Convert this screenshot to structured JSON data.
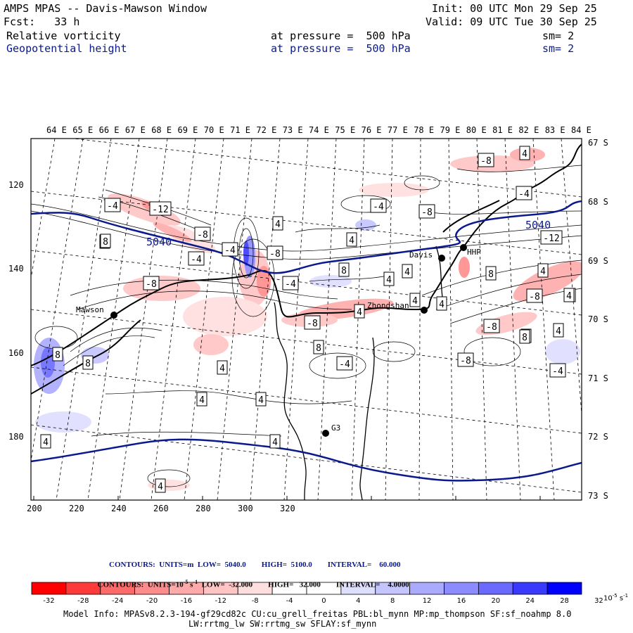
{
  "header": {
    "title": "AMPS MPAS -- Davis-Mawson Window",
    "init": "Init: 00 UTC Mon 29 Sep 25",
    "fcst": "Fcst:   33 h",
    "valid": "Valid: 09 UTC Tue 30 Sep 25",
    "field1_name": "Relative vorticity",
    "field1_level": "at pressure =  500 hPa",
    "field1_sm": "sm= 2",
    "field2_name": "Geopotential height",
    "field2_level": "at pressure =  500 hPa",
    "field2_sm": "sm= 2"
  },
  "map": {
    "lon_labels": [
      "64 E",
      "65 E",
      "66 E",
      "67 E",
      "68 E",
      "69 E",
      "70 E",
      "71 E",
      "72 E",
      "73 E",
      "74 E",
      "75 E",
      "76 E",
      "77 E",
      "78 E",
      "79 E",
      "80 E",
      "81 E",
      "82 E",
      "83 E",
      "84 E"
    ],
    "lat_labels": [
      "67 S",
      "68 S",
      "69 S",
      "70 S",
      "71 S",
      "72 S",
      "73 S"
    ],
    "x_ticks": [
      "200",
      "220",
      "240",
      "260",
      "280",
      "300",
      "320"
    ],
    "y_ticks": [
      "120",
      "140",
      "160",
      "180"
    ],
    "stations": [
      "Mawson",
      "Davis",
      "Zhongshan",
      "HHP",
      "G3"
    ],
    "height_contour_label": "5040",
    "vort_labels": [
      "-4",
      "-12",
      "-8",
      "-4",
      "8",
      "-8",
      "4",
      "4",
      "-4",
      "-8",
      "4",
      "8",
      "-4",
      "4",
      "4",
      "-8",
      "8",
      "-4",
      "-8",
      "-8",
      "4",
      "-4",
      "4",
      "-8",
      "4",
      "-12",
      "4",
      "8",
      "8",
      "4",
      "-4",
      "-8",
      "-4",
      "4",
      "4",
      "8",
      "4",
      "4",
      "4",
      "4",
      "4",
      "-8",
      "4",
      "8",
      "4",
      "8"
    ]
  },
  "contours_info": {
    "line1": "CONTOURS:  UNITS=m  LOW=  5040.0        HIGH=  5100.0        INTERVAL=    60.000",
    "line2_prefix": "CONTOURS:  UNITS=10",
    "line2_exp": "-5",
    "line2_unit": " s",
    "line2_uexp": "-1",
    "line2_rest": "  LOW=  -32.000        HIGH=   32.000        INTERVAL=    4.0000"
  },
  "colorbar": {
    "labels": [
      "-32",
      "-28",
      "-24",
      "-20",
      "-16",
      "-12",
      "-8",
      "-4",
      "0",
      "4",
      "8",
      "12",
      "16",
      "20",
      "24",
      "28",
      "32"
    ],
    "units": "10",
    "units_exp": "-5",
    "units_tail": " s",
    "units_tail_exp": "-1",
    "colors": [
      "#ff0000",
      "#ff3a3a",
      "#ff6a6a",
      "#ff8c8c",
      "#ffaaaa",
      "#ffc4c4",
      "#ffdede",
      "#ffffff",
      "#ffffff",
      "#dedeff",
      "#c4c4ff",
      "#aaaaff",
      "#8c8cff",
      "#6a6aff",
      "#3a3aff",
      "#0000ff"
    ]
  },
  "model_info": {
    "line1": "Model Info: MPASv8.2.3-194-gf29cd82c CU:cu_grell_freitas PBL:bl_mynn MP:mp_thompson SF:sf_noahmp 8.0",
    "line2": "LW:rrtmg_lw SW:rrtmg_sw SFLAY:sf_mynn"
  }
}
